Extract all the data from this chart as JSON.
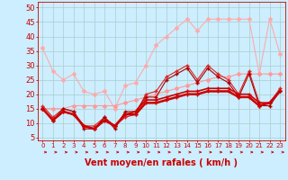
{
  "bg_color": "#cceeff",
  "grid_color": "#aacccc",
  "xlabel": "Vent moyen/en rafales ( km/h )",
  "xlabel_color": "#cc0000",
  "xlabel_fontsize": 7,
  "tick_color": "#cc0000",
  "ytick_fontsize": 6,
  "xtick_fontsize": 5,
  "yticks": [
    5,
    10,
    15,
    20,
    25,
    30,
    35,
    40,
    45,
    50
  ],
  "xticks": [
    0,
    1,
    2,
    3,
    4,
    5,
    6,
    7,
    8,
    9,
    10,
    11,
    12,
    13,
    14,
    15,
    16,
    17,
    18,
    19,
    20,
    21,
    22,
    23
  ],
  "xlim": [
    -0.5,
    23.5
  ],
  "ylim": [
    4,
    52
  ],
  "series": [
    {
      "x": [
        0,
        1,
        2,
        3,
        4,
        5,
        6,
        7,
        8,
        9,
        10,
        11,
        12,
        13,
        14,
        15,
        16,
        17,
        18,
        19,
        20,
        21,
        22,
        23
      ],
      "y": [
        36,
        28,
        25,
        27,
        21,
        20,
        21,
        15,
        23,
        24,
        30,
        37,
        40,
        43,
        46,
        42,
        46,
        46,
        46,
        46,
        46,
        27,
        46,
        34
      ],
      "color": "#ffaaaa",
      "lw": 0.8,
      "marker": "D",
      "ms": 2.0
    },
    {
      "x": [
        0,
        1,
        2,
        3,
        4,
        5,
        6,
        7,
        8,
        9,
        10,
        11,
        12,
        13,
        14,
        15,
        16,
        17,
        18,
        19,
        20,
        21,
        22,
        23
      ],
      "y": [
        15,
        15,
        15,
        16,
        16,
        16,
        16,
        16,
        17,
        18,
        19,
        20,
        21,
        22,
        23,
        24,
        25,
        26,
        26,
        27,
        27,
        27,
        27,
        27
      ],
      "color": "#ff9999",
      "lw": 0.8,
      "marker": "D",
      "ms": 2.0
    },
    {
      "x": [
        0,
        1,
        2,
        3,
        4,
        5,
        6,
        7,
        8,
        9,
        10,
        11,
        12,
        13,
        14,
        15,
        16,
        17,
        18,
        19,
        20,
        21,
        22,
        23
      ],
      "y": [
        16,
        12,
        15,
        14,
        9,
        9,
        12,
        9,
        12,
        13,
        20,
        21,
        26,
        28,
        30,
        25,
        30,
        27,
        25,
        20,
        28,
        17,
        17,
        22
      ],
      "color": "#dd2222",
      "lw": 0.8,
      "marker": "+",
      "ms": 3.0
    },
    {
      "x": [
        0,
        1,
        2,
        3,
        4,
        5,
        6,
        7,
        8,
        9,
        10,
        11,
        12,
        13,
        14,
        15,
        16,
        17,
        18,
        19,
        20,
        21,
        22,
        23
      ],
      "y": [
        15,
        11,
        15,
        14,
        8,
        8,
        12,
        8,
        14,
        14,
        19,
        19,
        25,
        27,
        29,
        24,
        29,
        26,
        24,
        19,
        27,
        16,
        16,
        21
      ],
      "color": "#aa0000",
      "lw": 0.8,
      "marker": "+",
      "ms": 3.0
    },
    {
      "x": [
        0,
        1,
        2,
        3,
        4,
        5,
        6,
        7,
        8,
        9,
        10,
        11,
        12,
        13,
        14,
        15,
        16,
        17,
        18,
        19,
        20,
        21,
        22,
        23
      ],
      "y": [
        15,
        11,
        14,
        13,
        9,
        8,
        11,
        9,
        13,
        14,
        18,
        18,
        19,
        20,
        21,
        21,
        22,
        22,
        22,
        20,
        20,
        17,
        17,
        21
      ],
      "color": "#cc0000",
      "lw": 1.2,
      "marker": "+",
      "ms": 2.5
    },
    {
      "x": [
        0,
        1,
        2,
        3,
        4,
        5,
        6,
        7,
        8,
        9,
        10,
        11,
        12,
        13,
        14,
        15,
        16,
        17,
        18,
        19,
        20,
        21,
        22,
        23
      ],
      "y": [
        15,
        11,
        14,
        13,
        9,
        8,
        11,
        9,
        13,
        13,
        17,
        17,
        18,
        19,
        20,
        20,
        21,
        21,
        21,
        19,
        19,
        16,
        17,
        21
      ],
      "color": "#cc0000",
      "lw": 1.8,
      "marker": "+",
      "ms": 2.5
    }
  ],
  "arrow_color": "#cc0000",
  "spine_color": "#cc0000"
}
